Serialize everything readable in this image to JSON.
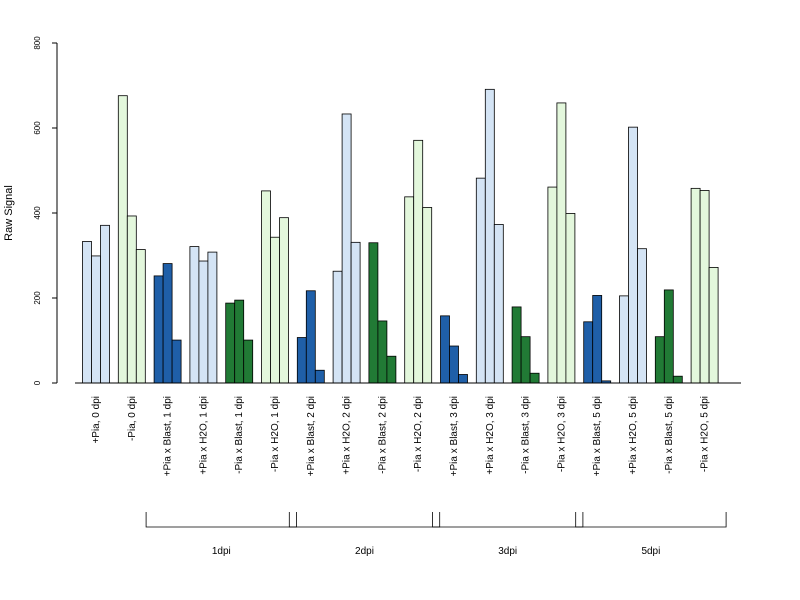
{
  "chart_data": {
    "type": "bar",
    "ylabel": "Raw Signal",
    "xlabel": "",
    "title": "",
    "ylim": [
      0,
      800
    ],
    "yticks": [
      0,
      200,
      400,
      600,
      800
    ],
    "grid": false,
    "categories": [
      "+Pia, 0 dpi",
      "-Pia, 0 dpi",
      "+Pia x Blast, 1 dpi",
      "+Pia x H2O, 1 dpi",
      "-Pia x Blast, 1 dpi",
      "-Pia x H2O, 1 dpi",
      "+Pia x Blast, 2 dpi",
      "+Pia x H2O, 2 dpi",
      "-Pia x Blast, 2 dpi",
      "-Pia x H2O, 2 dpi",
      "+Pia x Blast, 3 dpi",
      "+Pia x H2O, 3 dpi",
      "-Pia x Blast, 3 dpi",
      "-Pia x H2O, 3 dpi",
      "+Pia x Blast, 5 dpi",
      "+Pia x H2O, 5 dpi",
      "-Pia x Blast, 5 dpi",
      "-Pia x H2O, 5 dpi"
    ],
    "group_colors": [
      "#d4e4f5",
      "#e3f7dc",
      "#1f5fa8",
      "#d4e4f5",
      "#217a35",
      "#e3f7dc",
      "#1f5fa8",
      "#d4e4f5",
      "#217a35",
      "#e3f7dc",
      "#1f5fa8",
      "#d4e4f5",
      "#217a35",
      "#e3f7dc",
      "#1f5fa8",
      "#d4e4f5",
      "#217a35",
      "#e3f7dc"
    ],
    "values": [
      [
        333,
        299,
        371
      ],
      [
        676,
        393,
        314
      ],
      [
        252,
        281,
        101
      ],
      [
        321,
        287,
        308
      ],
      [
        188,
        195,
        101
      ],
      [
        452,
        343,
        389
      ],
      [
        107,
        217,
        30
      ],
      [
        263,
        633,
        331
      ],
      [
        330,
        146,
        63
      ],
      [
        438,
        571,
        413
      ],
      [
        158,
        87,
        20
      ],
      [
        482,
        691,
        373
      ],
      [
        179,
        109,
        23
      ],
      [
        461,
        659,
        399
      ],
      [
        144,
        206,
        5
      ],
      [
        205,
        602,
        316
      ],
      [
        109,
        219,
        16
      ],
      [
        458,
        453,
        272
      ]
    ],
    "brackets": [
      {
        "label": "1dpi",
        "from": 2,
        "to": 5
      },
      {
        "label": "2dpi",
        "from": 6,
        "to": 9
      },
      {
        "label": "3dpi",
        "from": 10,
        "to": 13
      },
      {
        "label": "5dpi",
        "from": 14,
        "to": 17
      }
    ]
  }
}
